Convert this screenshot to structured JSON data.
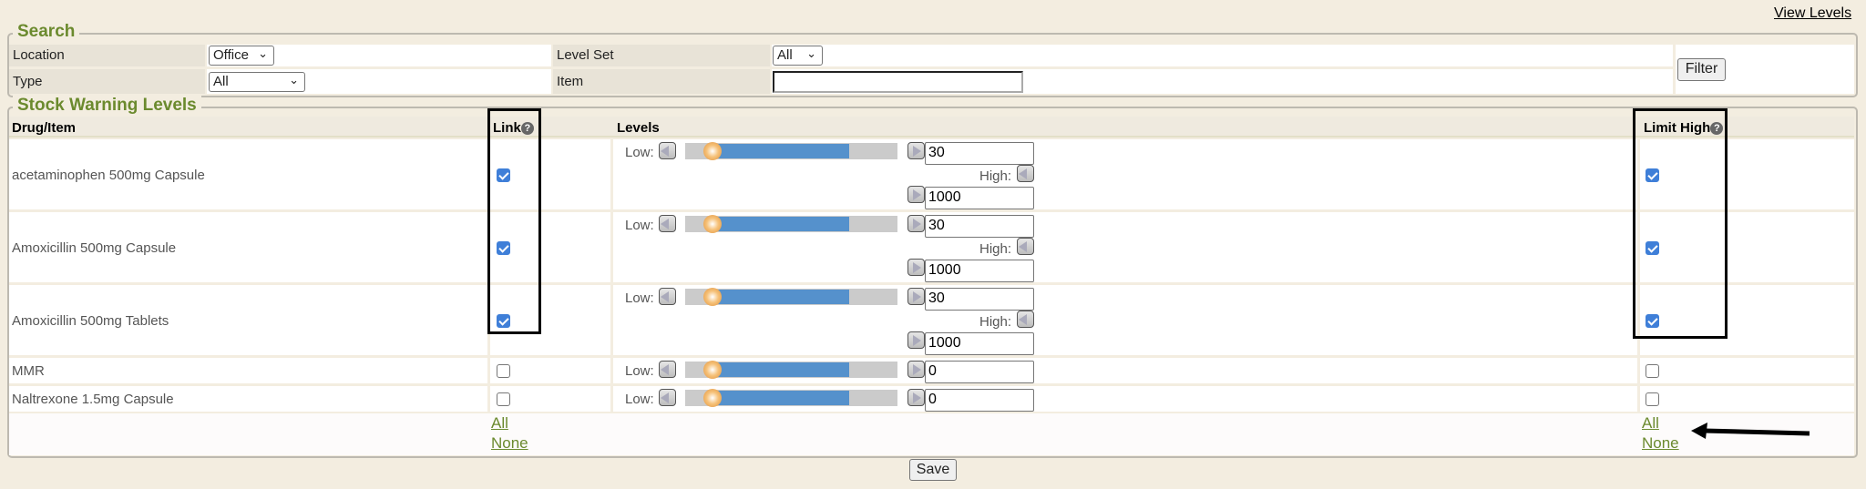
{
  "top_link": "View Levels",
  "search": {
    "legend": "Search",
    "location_label": "Location",
    "location_value": "Office",
    "level_set_label": "Level Set",
    "level_set_value": "All",
    "type_label": "Type",
    "type_value": "All",
    "item_label": "Item",
    "item_value": "",
    "filter_button": "Filter"
  },
  "stock": {
    "legend": "Stock Warning Levels",
    "headers": {
      "drug": "Drug/Item",
      "link": "Link",
      "levels": "Levels",
      "limit_high": "Limit High"
    },
    "low_label": "Low:",
    "high_label": "High:",
    "rows": [
      {
        "name": "acetaminophen 500mg Capsule",
        "link": true,
        "limit_high": true,
        "low": "30",
        "high": "1000"
      },
      {
        "name": "Amoxicillin 500mg Capsule",
        "link": true,
        "limit_high": true,
        "low": "30",
        "high": "1000"
      },
      {
        "name": "Amoxicillin 500mg Tablets",
        "link": true,
        "limit_high": true,
        "low": "30",
        "high": "1000"
      },
      {
        "name": "MMR",
        "link": false,
        "limit_high": false,
        "low": "0"
      },
      {
        "name": "Naltrexone 1.5mg Capsule",
        "link": false,
        "limit_high": false,
        "low": "0"
      }
    ],
    "all_label": "All",
    "none_label": "None"
  },
  "save_button": "Save",
  "colors": {
    "legend": "#6b8a2e",
    "slider_fill": "#5591cc",
    "checkbox": "#3f7fd8"
  }
}
